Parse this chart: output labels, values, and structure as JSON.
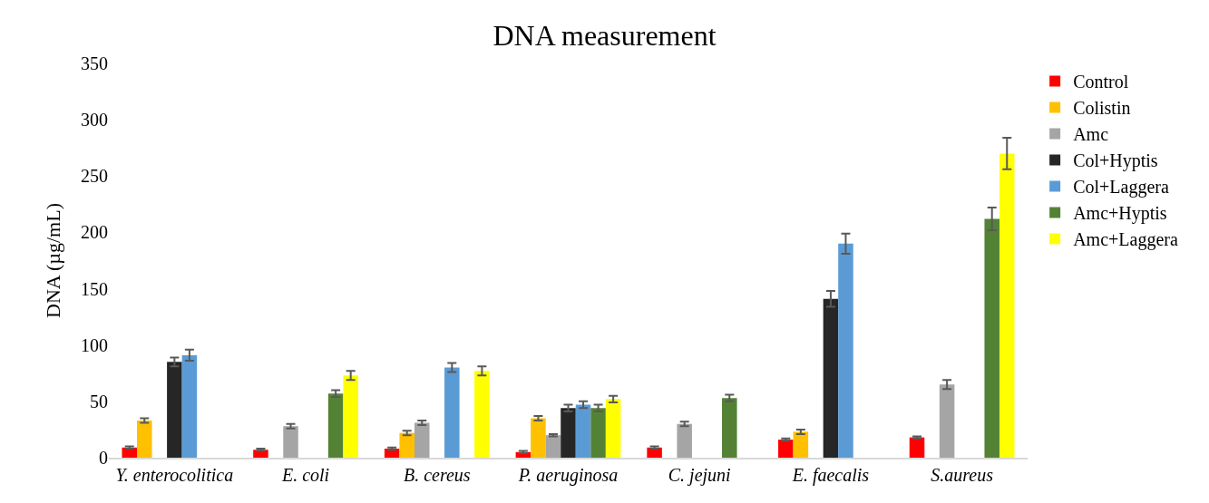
{
  "chart_data": {
    "type": "bar",
    "title": "DNA measurement",
    "ylabel": "DNA (µg/mL)",
    "categories": [
      "Y. enterocolitica",
      "E. coli",
      "B. cereus",
      "P. aeruginosa",
      "C. jejuni",
      "E. faecalis",
      "S.aureus"
    ],
    "series": [
      {
        "name": "Control",
        "color": "#ff0000",
        "values": [
          9,
          7,
          8,
          5,
          9,
          16,
          18
        ],
        "errors": [
          1,
          1,
          1,
          1,
          1,
          1,
          1
        ]
      },
      {
        "name": "Colistin",
        "color": "#ffc000",
        "values": [
          33,
          null,
          22,
          35,
          null,
          23,
          null
        ],
        "errors": [
          2,
          null,
          2,
          2,
          null,
          2,
          null
        ]
      },
      {
        "name": "Amc",
        "color": "#a5a5a5",
        "values": [
          null,
          28,
          31,
          20,
          30,
          null,
          65
        ],
        "errors": [
          null,
          2,
          2,
          1,
          2,
          null,
          4
        ]
      },
      {
        "name": "Col+Hyptis",
        "color": "#262626",
        "values": [
          85,
          null,
          null,
          44,
          null,
          141,
          null
        ],
        "errors": [
          4,
          null,
          null,
          3,
          null,
          7,
          null
        ]
      },
      {
        "name": "Col+Laggera",
        "color": "#5b9bd5",
        "values": [
          91,
          null,
          80,
          47,
          null,
          190,
          null
        ],
        "errors": [
          5,
          null,
          4,
          3,
          null,
          9,
          null
        ]
      },
      {
        "name": "Amc+Hyptis",
        "color": "#548235",
        "values": [
          null,
          57,
          null,
          44,
          53,
          null,
          212
        ],
        "errors": [
          null,
          3,
          null,
          3,
          3,
          null,
          10
        ]
      },
      {
        "name": "Amc+Laggera",
        "color": "#ffff00",
        "values": [
          null,
          73,
          77,
          52,
          null,
          null,
          270
        ],
        "errors": [
          null,
          4,
          4,
          3,
          null,
          null,
          14
        ]
      }
    ],
    "ylim": [
      0,
      350
    ],
    "yticks": [
      0,
      50,
      100,
      150,
      200,
      250,
      300,
      350
    ],
    "grid": false,
    "legend": "right"
  }
}
